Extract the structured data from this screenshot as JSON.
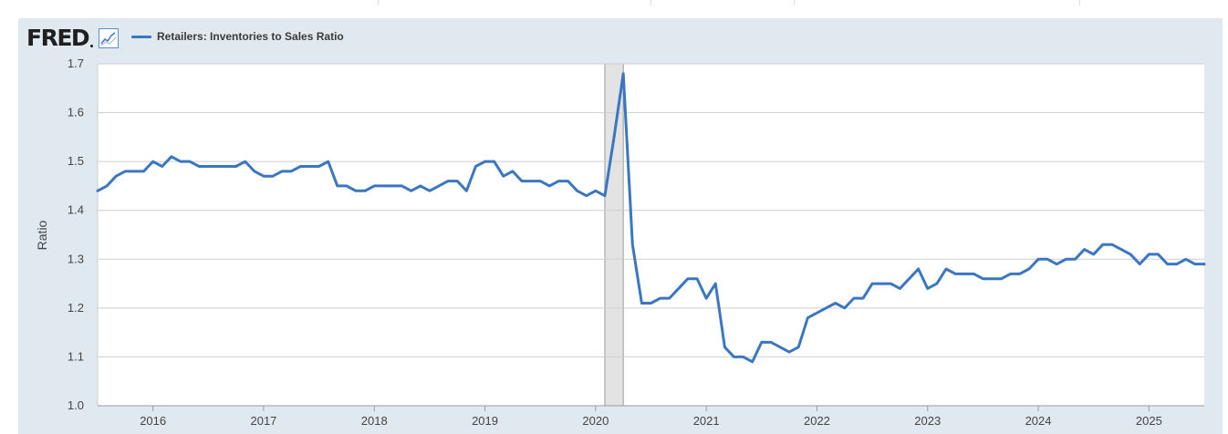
{
  "logo": {
    "text": "FRED",
    "icon": "line-chart-icon"
  },
  "colors": {
    "series": "#3b76c1",
    "panel": "#e1e9f0",
    "recession": "#e3e3e3",
    "grid": "#cfcfcf"
  },
  "chart_data": {
    "type": "line",
    "ylabel": "Ratio",
    "ylim": [
      1.0,
      1.7
    ],
    "yticks": [
      "1.0",
      "1.1",
      "1.2",
      "1.3",
      "1.4",
      "1.5",
      "1.6",
      "1.7"
    ],
    "xticks": [
      "2016",
      "2017",
      "2018",
      "2019",
      "2020",
      "2021",
      "2022",
      "2023",
      "2024",
      "2025"
    ],
    "xrange": [
      "2015-07",
      "2025-07"
    ],
    "grid": true,
    "legend_position": "top-left",
    "recession": {
      "start": "2020-02",
      "end": "2020-04"
    },
    "series": [
      {
        "name": "Retailers: Inventories to Sales Ratio",
        "start": "2015-07",
        "frequency": "monthly",
        "values": [
          1.44,
          1.45,
          1.47,
          1.48,
          1.48,
          1.48,
          1.5,
          1.49,
          1.51,
          1.5,
          1.5,
          1.49,
          1.49,
          1.49,
          1.49,
          1.49,
          1.5,
          1.48,
          1.47,
          1.47,
          1.48,
          1.48,
          1.49,
          1.49,
          1.49,
          1.5,
          1.45,
          1.45,
          1.44,
          1.44,
          1.45,
          1.45,
          1.45,
          1.45,
          1.44,
          1.45,
          1.44,
          1.45,
          1.46,
          1.46,
          1.44,
          1.49,
          1.5,
          1.5,
          1.47,
          1.48,
          1.46,
          1.46,
          1.46,
          1.45,
          1.46,
          1.46,
          1.44,
          1.43,
          1.44,
          1.43,
          1.55,
          1.68,
          1.33,
          1.21,
          1.21,
          1.22,
          1.22,
          1.24,
          1.26,
          1.26,
          1.22,
          1.25,
          1.12,
          1.1,
          1.1,
          1.09,
          1.13,
          1.13,
          1.12,
          1.11,
          1.12,
          1.18,
          1.19,
          1.2,
          1.21,
          1.2,
          1.22,
          1.22,
          1.25,
          1.25,
          1.25,
          1.24,
          1.26,
          1.28,
          1.24,
          1.25,
          1.28,
          1.27,
          1.27,
          1.27,
          1.26,
          1.26,
          1.26,
          1.27,
          1.27,
          1.28,
          1.3,
          1.3,
          1.29,
          1.3,
          1.3,
          1.32,
          1.31,
          1.33,
          1.33,
          1.32,
          1.31,
          1.29,
          1.31,
          1.31,
          1.29,
          1.29,
          1.3,
          1.29,
          1.29
        ]
      }
    ]
  }
}
